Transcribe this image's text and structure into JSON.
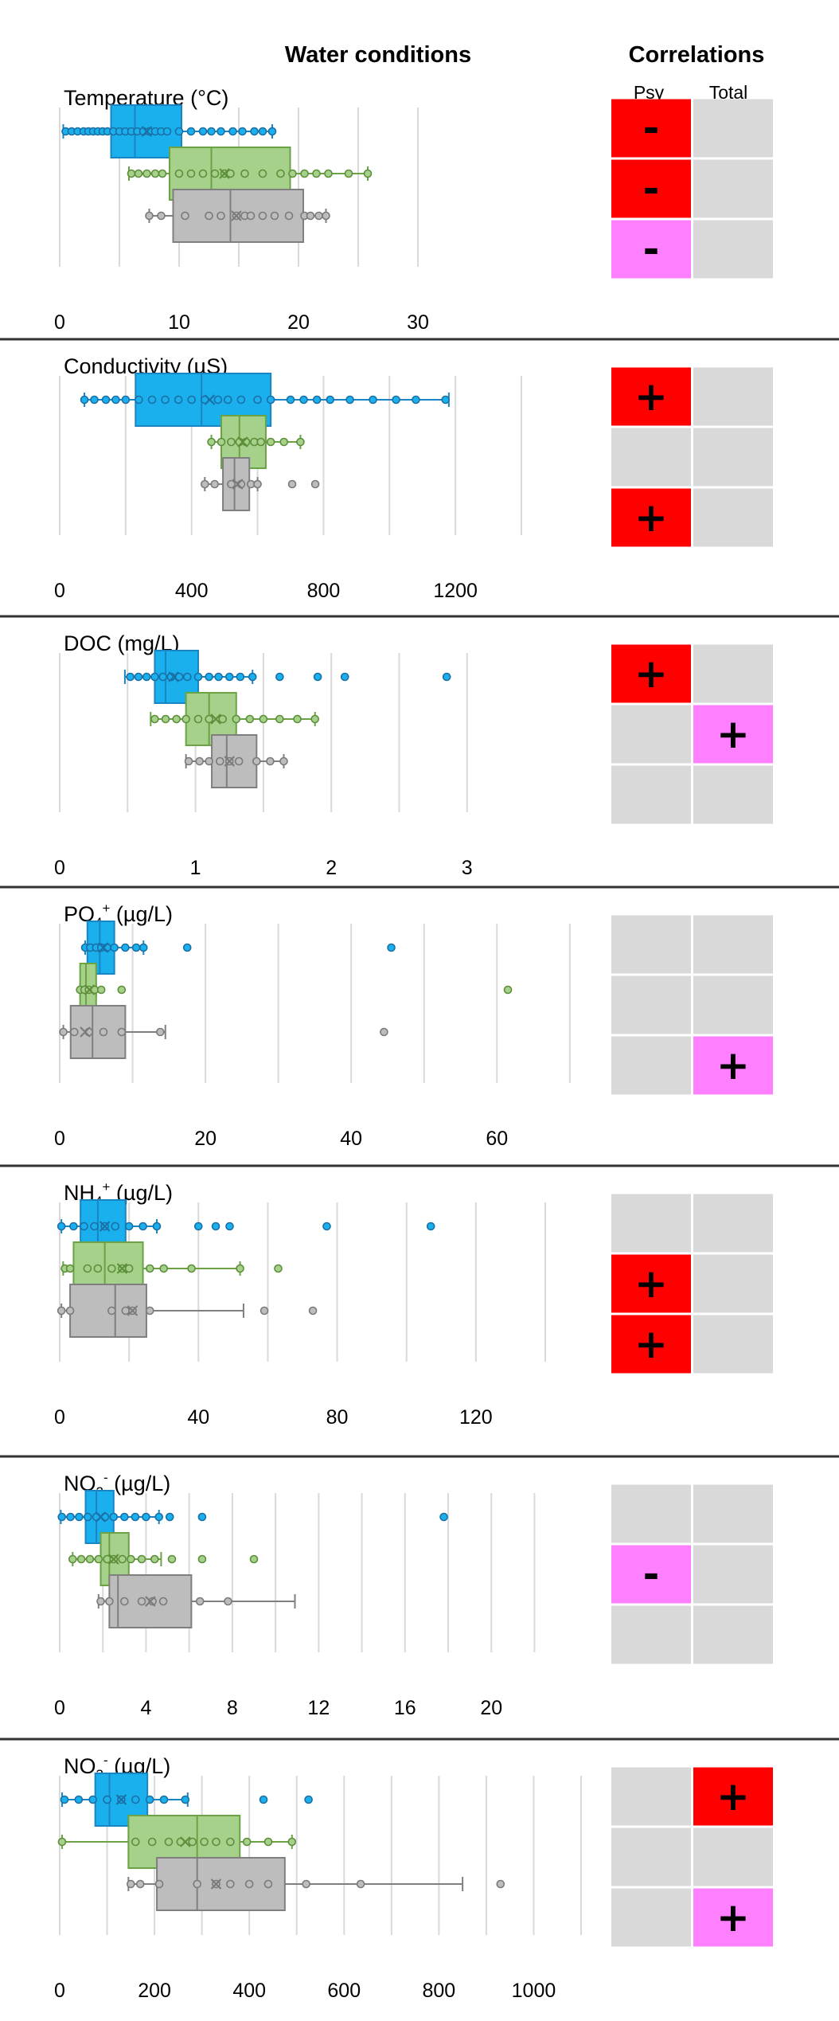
{
  "headers": {
    "water_conditions": "Water conditions",
    "correlations": "Correlations",
    "col_psy": "Psy",
    "col_total": "Total"
  },
  "colors": {
    "group_fill": [
      "#1ab0ee",
      "#a6d18a",
      "#bdbdbd"
    ],
    "group_stroke": [
      "#1a85c2",
      "#6aa244",
      "#7f7f7f"
    ],
    "point_stroke": [
      "#1a6fa5",
      "#5c8f3a",
      "#7a7a7a"
    ],
    "cell_neutral": "#d9d9d9",
    "cell_strong": "#ff0000",
    "cell_weak": "#ff80ff",
    "grid": "#d9d9d9",
    "separator": "#333333"
  },
  "chart_data": [
    {
      "type": "box",
      "title_parts": [
        {
          "t": "Temperature (°C)"
        }
      ],
      "xlim": [
        0,
        30
      ],
      "xticks": [
        0,
        10,
        20,
        30
      ],
      "boxes": [
        {
          "whisker": [
            0.3,
            17.8
          ],
          "q1": 4.3,
          "median": 6.3,
          "q3": 10.2,
          "mean": 7.3,
          "points": [
            0.5,
            1,
            1.5,
            2,
            2.4,
            2.8,
            3.2,
            3.6,
            4,
            4.5,
            5,
            5.5,
            6,
            6.5,
            7,
            7.5,
            8,
            8.5,
            9,
            10,
            11,
            12,
            12.7,
            13.5,
            14.5,
            15.3,
            16.3,
            17,
            17.8
          ]
        },
        {
          "whisker": [
            5.8,
            25.8
          ],
          "q1": 9.2,
          "median": 12.7,
          "q3": 19.3,
          "mean": 13.8,
          "points": [
            6,
            6.6,
            7.3,
            8,
            8.6,
            10,
            11,
            12,
            13,
            13.8,
            14.3,
            15.5,
            17,
            18.5,
            19.5,
            20.5,
            21.5,
            22.5,
            24.2,
            25.8
          ]
        },
        {
          "whisker": [
            7.5,
            22.3
          ],
          "q1": 9.5,
          "median": 14.3,
          "q3": 20.4,
          "mean": 14.8,
          "points": [
            7.5,
            8.5,
            10.5,
            12.5,
            13.5,
            14.8,
            15.5,
            16,
            17,
            18,
            19.2,
            20.5,
            21,
            21.7,
            22.3
          ]
        }
      ],
      "correlations": [
        [
          "-",
          ""
        ],
        [
          "-",
          ""
        ],
        [
          "-",
          ""
        ]
      ],
      "correlation_strength": [
        [
          "strong",
          ""
        ],
        [
          "strong",
          ""
        ],
        [
          "weak",
          ""
        ]
      ]
    },
    {
      "type": "box",
      "title_parts": [
        {
          "t": "Conductivity (µS)"
        }
      ],
      "xlim": [
        0,
        1400
      ],
      "xticks": [
        0,
        400,
        800,
        1200
      ],
      "boxes": [
        {
          "whisker": [
            75,
            1180
          ],
          "q1": 230,
          "median": 430,
          "q3": 640,
          "mean": 455,
          "points": [
            75,
            105,
            140,
            170,
            200,
            240,
            280,
            320,
            360,
            400,
            440,
            480,
            510,
            550,
            600,
            640,
            700,
            740,
            780,
            820,
            880,
            950,
            1020,
            1080,
            1170
          ]
        },
        {
          "whisker": [
            460,
            730
          ],
          "q1": 490,
          "median": 545,
          "q3": 625,
          "mean": 555,
          "points": [
            460,
            490,
            520,
            545,
            565,
            590,
            610,
            640,
            680,
            730
          ]
        },
        {
          "whisker": [
            440,
            600
          ],
          "q1": 495,
          "median": 530,
          "q3": 575,
          "mean": 540,
          "points": [
            440,
            470,
            520,
            550,
            580,
            600,
            705,
            775
          ]
        }
      ],
      "correlations": [
        [
          "+",
          ""
        ],
        [
          "",
          ""
        ],
        [
          "+",
          ""
        ]
      ],
      "correlation_strength": [
        [
          "strong",
          ""
        ],
        [
          "",
          ""
        ],
        [
          "strong",
          ""
        ]
      ]
    },
    {
      "type": "box",
      "title_parts": [
        {
          "t": "DOC (mg/L)"
        }
      ],
      "xlim": [
        0,
        3.4
      ],
      "xticks": [
        0,
        1,
        2,
        3
      ],
      "boxes": [
        {
          "whisker": [
            0.48,
            1.42
          ],
          "q1": 0.7,
          "median": 0.78,
          "q3": 1.02,
          "mean": 0.84,
          "points": [
            0.52,
            0.58,
            0.64,
            0.7,
            0.76,
            0.82,
            0.88,
            0.94,
            1.02,
            1.1,
            1.17,
            1.25,
            1.33,
            1.42,
            1.62,
            1.9,
            2.1,
            2.85
          ]
        },
        {
          "whisker": [
            0.67,
            1.88
          ],
          "q1": 0.93,
          "median": 1.1,
          "q3": 1.3,
          "mean": 1.15,
          "points": [
            0.7,
            0.78,
            0.86,
            0.93,
            1.02,
            1.1,
            1.2,
            1.3,
            1.4,
            1.5,
            1.62,
            1.75,
            1.88
          ]
        },
        {
          "whisker": [
            0.93,
            1.65
          ],
          "q1": 1.12,
          "median": 1.23,
          "q3": 1.45,
          "mean": 1.25,
          "points": [
            0.95,
            1.03,
            1.1,
            1.18,
            1.25,
            1.32,
            1.45,
            1.55,
            1.65
          ]
        }
      ],
      "correlations": [
        [
          "+",
          ""
        ],
        [
          "",
          "+"
        ],
        [
          "",
          ""
        ]
      ],
      "correlation_strength": [
        [
          "strong",
          ""
        ],
        [
          "",
          "weak"
        ],
        [
          "",
          ""
        ]
      ]
    },
    {
      "type": "box",
      "title_parts": [
        {
          "t": "PO"
        },
        {
          "t": "4",
          "sub": true
        },
        {
          "t": "+",
          "sup": true
        },
        {
          "t": " (µg/L)"
        }
      ],
      "xlim": [
        0,
        71
      ],
      "xticks": [
        0,
        20,
        40,
        60
      ],
      "boxes": [
        {
          "whisker": [
            3.5,
            11.5
          ],
          "q1": 3.8,
          "median": 5.5,
          "q3": 7.5,
          "mean": 6,
          "points": [
            3.5,
            4.2,
            5,
            5.7,
            6.5,
            7.5,
            9,
            10.5,
            11.5,
            17.5,
            45.5
          ]
        },
        {
          "whisker": [
            2.8,
            5
          ],
          "q1": 2.8,
          "median": 3.6,
          "q3": 5,
          "mean": 4.1,
          "points": [
            2.8,
            3.4,
            4,
            4.8,
            5.7,
            8.5,
            61.5
          ]
        },
        {
          "whisker": [
            0.5,
            14.5
          ],
          "q1": 1.5,
          "median": 4.5,
          "q3": 9,
          "mean": 3.5,
          "points": [
            0.5,
            2,
            4,
            6,
            8.5,
            13.8,
            44.5
          ]
        }
      ],
      "correlations": [
        [
          "",
          ""
        ],
        [
          "",
          ""
        ],
        [
          "",
          "+"
        ]
      ],
      "correlation_strength": [
        [
          "",
          ""
        ],
        [
          "",
          ""
        ],
        [
          "",
          "weak"
        ]
      ]
    },
    {
      "type": "box",
      "title_parts": [
        {
          "t": "NH"
        },
        {
          "t": "4",
          "sub": true
        },
        {
          "t": "+",
          "sup": true
        },
        {
          "t": " (µg/L)"
        }
      ],
      "xlim": [
        0,
        140
      ],
      "xticks": [
        0,
        40,
        80,
        120
      ],
      "boxes": [
        {
          "whisker": [
            0.5,
            28
          ],
          "q1": 6,
          "median": 11,
          "q3": 19,
          "mean": 13,
          "points": [
            0.5,
            4,
            7,
            10,
            13,
            16,
            20,
            24,
            28,
            40,
            45,
            49,
            77,
            107
          ]
        },
        {
          "whisker": [
            1,
            52
          ],
          "q1": 4,
          "median": 13,
          "q3": 24,
          "mean": 18,
          "points": [
            1.5,
            3,
            8,
            11,
            15,
            18,
            20,
            26,
            30,
            38,
            52,
            63
          ]
        },
        {
          "whisker": [
            0.5,
            53
          ],
          "q1": 3,
          "median": 16,
          "q3": 25,
          "mean": 21,
          "points": [
            0.5,
            3,
            15,
            19,
            21,
            26,
            59,
            73
          ]
        }
      ],
      "correlations": [
        [
          "",
          ""
        ],
        [
          "+",
          ""
        ],
        [
          "+",
          ""
        ]
      ],
      "correlation_strength": [
        [
          "",
          ""
        ],
        [
          "strong",
          ""
        ],
        [
          "strong",
          ""
        ]
      ]
    },
    {
      "type": "box",
      "title_parts": [
        {
          "t": "NO"
        },
        {
          "t": "2",
          "sub": true
        },
        {
          "t": "-",
          "sup": true
        },
        {
          "t": " (µg/L)"
        }
      ],
      "xlim": [
        0,
        22.5
      ],
      "xticks": [
        0,
        4,
        8,
        12,
        16,
        20
      ],
      "boxes": [
        {
          "whisker": [
            0.05,
            4.6
          ],
          "q1": 1.2,
          "median": 1.7,
          "q3": 2.5,
          "mean": 1.9,
          "points": [
            0.1,
            0.5,
            0.9,
            1.3,
            1.7,
            2.1,
            2.5,
            3,
            3.5,
            4,
            4.6,
            5.1,
            6.6,
            17.8
          ]
        },
        {
          "whisker": [
            0.6,
            4.7
          ],
          "q1": 1.9,
          "median": 2.3,
          "q3": 3.2,
          "mean": 2.5,
          "points": [
            0.6,
            1,
            1.4,
            1.8,
            2.2,
            2.5,
            2.9,
            3.3,
            3.8,
            4.4,
            5.2,
            6.6,
            9
          ]
        },
        {
          "whisker": [
            1.8,
            10.9
          ],
          "q1": 2.3,
          "median": 2.7,
          "q3": 6.1,
          "mean": 4.2,
          "points": [
            1.9,
            2.3,
            3,
            3.8,
            4.3,
            4.8,
            6.5,
            7.8
          ]
        }
      ],
      "correlations": [
        [
          "",
          ""
        ],
        [
          "-",
          ""
        ],
        [
          "",
          ""
        ]
      ],
      "correlation_strength": [
        [
          "",
          ""
        ],
        [
          "weak",
          ""
        ],
        [
          "",
          ""
        ]
      ]
    },
    {
      "type": "box",
      "title_parts": [
        {
          "t": "NO"
        },
        {
          "t": "3",
          "sub": true
        },
        {
          "t": "-",
          "sup": true
        },
        {
          "t": " (µg/L)"
        }
      ],
      "xlim": [
        0,
        1100
      ],
      "xticks": [
        0,
        200,
        400,
        600,
        800,
        1000
      ],
      "boxes": [
        {
          "whisker": [
            5,
            270
          ],
          "q1": 75,
          "median": 105,
          "q3": 185,
          "mean": 130,
          "points": [
            10,
            40,
            70,
            100,
            130,
            160,
            190,
            220,
            265,
            430,
            525
          ]
        },
        {
          "whisker": [
            5,
            490
          ],
          "q1": 145,
          "median": 290,
          "q3": 380,
          "mean": 265,
          "points": [
            5,
            160,
            195,
            230,
            255,
            280,
            305,
            330,
            360,
            395,
            440,
            490
          ]
        },
        {
          "whisker": [
            145,
            850
          ],
          "q1": 205,
          "median": 290,
          "q3": 475,
          "mean": 330,
          "points": [
            150,
            170,
            210,
            290,
            330,
            360,
            400,
            440,
            520,
            635,
            930
          ]
        }
      ],
      "correlations": [
        [
          "",
          "+"
        ],
        [
          "",
          ""
        ],
        [
          "",
          "+"
        ]
      ],
      "correlation_strength": [
        [
          "",
          "strong"
        ],
        [
          "",
          ""
        ],
        [
          "",
          "weak"
        ]
      ]
    }
  ]
}
